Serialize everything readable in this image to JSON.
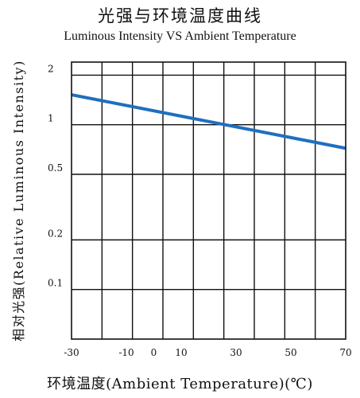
{
  "chart_data": {
    "type": "line",
    "title": "光强与环境温度曲线",
    "subtitle": "Luminous Intensity VS Ambient Temperature",
    "xlabel": "环境温度(Ambient Temperature)(℃)",
    "ylabel": "相对光强(Relative Luminous Intensity)",
    "x_ticks": [
      -30,
      -10,
      0,
      10,
      30,
      50,
      70
    ],
    "y_ticks": [
      0.1,
      0.2,
      0.5,
      1,
      2
    ],
    "y_tick_labels": [
      "0.1",
      "0.2",
      "0.5",
      "1",
      "2"
    ],
    "xlim": [
      -30,
      70
    ],
    "ylim": [
      0.05,
      2.4
    ],
    "yscale": "log",
    "grid": true,
    "series": [
      {
        "x": [
          -30,
          70
        ],
        "y": [
          1.52,
          0.72
        ],
        "color": "#1f6fbf"
      }
    ]
  }
}
